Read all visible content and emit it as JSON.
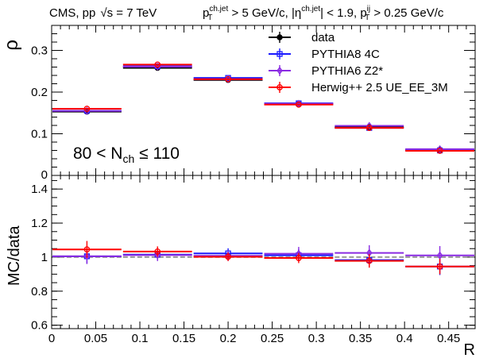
{
  "chart_data": {
    "type": "line",
    "header": {
      "left_prefix": "CMS, pp",
      "sqrt_symbol": "√",
      "s_symbol": "s",
      "energy": " = 7 TeV",
      "pt_symbol": "p",
      "pt_sub": "T",
      "chjet_sup": "ch.jet",
      "pt_cut": " > 5 GeV/c, |η",
      "eta_cut": "| < 1.9, p",
      "ij_sup": "ij",
      "ij_sub": "T",
      "pt_ij_cut": " > 0.25 GeV/c"
    },
    "label": {
      "prefix": "80 < N",
      "sub": "ch",
      "suffix": " ≤ 110"
    },
    "x": [
      0.04,
      0.12,
      0.2,
      0.28,
      0.36,
      0.44
    ],
    "bin_edges": [
      0,
      0.08,
      0.16,
      0.24,
      0.32,
      0.4,
      0.48
    ],
    "xlabel": "R",
    "xlim": [
      0,
      0.48
    ],
    "top": {
      "ylabel": "ρ",
      "ylim": [
        0,
        0.36
      ],
      "yticks": [
        0.1,
        0.2,
        0.3
      ],
      "ytick_labels": [
        "0.1",
        "0.2",
        "0.3"
      ],
      "extra_tick_label": "0",
      "series": [
        {
          "name": "data",
          "color": "#000000",
          "marker": "filled-circle",
          "values": [
            0.153,
            0.258,
            0.229,
            0.171,
            0.116,
            0.062
          ],
          "errors": [
            0.006,
            0.006,
            0.005,
            0.005,
            0.004,
            0.003
          ]
        },
        {
          "name": "PYTHIA8 4C",
          "color": "#1a1aff",
          "marker": "open-square",
          "values": [
            0.155,
            0.262,
            0.234,
            0.173,
            0.114,
            0.06
          ],
          "errors": [
            0.002,
            0.002,
            0.002,
            0.002,
            0.002,
            0.002
          ]
        },
        {
          "name": "PYTHIA6 Z2*",
          "color": "#8a2be2",
          "marker": "open-diamond",
          "values": [
            0.155,
            0.261,
            0.231,
            0.172,
            0.119,
            0.063
          ],
          "errors": [
            0.002,
            0.002,
            0.002,
            0.002,
            0.002,
            0.002
          ]
        },
        {
          "name": "Herwig++ 2.5  UE_EE_3M",
          "color": "#ff0000",
          "marker": "open-circle",
          "values": [
            0.16,
            0.266,
            0.231,
            0.17,
            0.114,
            0.059
          ],
          "errors": [
            0.002,
            0.002,
            0.002,
            0.002,
            0.002,
            0.002
          ]
        }
      ]
    },
    "ratio": {
      "ylabel": "MC/data",
      "ylim": [
        0.58,
        1.48
      ],
      "yticks": [
        0.6,
        0.8,
        1.0,
        1.2,
        1.4
      ],
      "ytick_labels": [
        "0.6",
        "0.8",
        "1",
        "1.2",
        "1.4"
      ],
      "reference_line": 1.0,
      "series": [
        {
          "name": "PYTHIA8 4C",
          "color": "#1a1aff",
          "marker": "open-square",
          "values": [
            1.005,
            1.015,
            1.022,
            1.011,
            0.983,
            0.945
          ],
          "errors": [
            0.045,
            0.03,
            0.03,
            0.035,
            0.04,
            0.05
          ]
        },
        {
          "name": "PYTHIA6 Z2*",
          "color": "#8a2be2",
          "marker": "open-diamond",
          "values": [
            1.005,
            1.012,
            1.008,
            1.02,
            1.025,
            1.01
          ],
          "errors": [
            0.045,
            0.035,
            0.03,
            0.04,
            0.045,
            0.055
          ]
        },
        {
          "name": "Herwig++ 2.5  UE_EE_3M",
          "color": "#ff0000",
          "marker": "open-circle",
          "values": [
            1.045,
            1.033,
            1.002,
            0.995,
            0.978,
            0.945
          ],
          "errors": [
            0.05,
            0.03,
            0.025,
            0.03,
            0.04,
            0.045
          ]
        },
        {
          "name": "data reference",
          "color": "#999999",
          "marker": "none",
          "values": [
            1.0,
            1.0,
            1.0,
            1.0,
            1.0,
            1.0
          ],
          "errors": [
            0,
            0,
            0,
            0,
            0,
            0
          ]
        }
      ]
    },
    "xticks": [
      0,
      0.05,
      0.1,
      0.15,
      0.2,
      0.25,
      0.3,
      0.35,
      0.4,
      0.45
    ],
    "xtick_labels": [
      "0",
      "0.05",
      "0.1",
      "0.15",
      "0.2",
      "0.25",
      "0.3",
      "0.35",
      "0.4",
      "0.45"
    ]
  }
}
